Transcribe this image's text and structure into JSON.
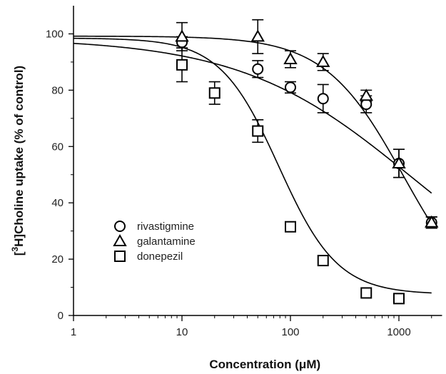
{
  "chart_data": {
    "type": "scatter",
    "x_scale": "log",
    "xlabel": "Concentration (μM)",
    "ylabel_prefix": "[",
    "ylabel_sup": "3",
    "ylabel_suffix": "H]Choline uptake (% of control)",
    "xlim": [
      1,
      2500
    ],
    "ylim": [
      0,
      110
    ],
    "x_ticks": [
      1,
      10,
      100,
      1000
    ],
    "x_tick_labels": [
      "1",
      "10",
      "100",
      "1000"
    ],
    "y_ticks": [
      0,
      20,
      40,
      60,
      80,
      100
    ],
    "y_tick_labels": [
      "0",
      "20",
      "40",
      "60",
      "80",
      "100"
    ],
    "grid": false,
    "legend_position": "lower-left",
    "series": [
      {
        "name": "rivastigmine",
        "marker": "circle",
        "x": [
          10,
          50,
          100,
          200,
          500,
          1000,
          2000
        ],
        "y": [
          97,
          87.5,
          81,
          77,
          75,
          54,
          33
        ],
        "err": [
          2,
          3,
          2,
          5,
          3,
          5,
          2
        ],
        "fit": {
          "top": 98.5,
          "bottom": 0,
          "ic50": 1300,
          "hill": 0.55
        }
      },
      {
        "name": "galantamine",
        "marker": "triangle",
        "x": [
          10,
          50,
          100,
          200,
          500,
          1000,
          2000
        ],
        "y": [
          99,
          99,
          91,
          90,
          78,
          54,
          33
        ],
        "err": [
          5,
          6,
          3,
          3,
          2,
          5,
          2
        ],
        "fit": {
          "top": 99.2,
          "bottom": 0,
          "ic50": 1100,
          "hill": 1.2
        }
      },
      {
        "name": "donepezil",
        "marker": "square",
        "x": [
          10,
          20,
          50,
          100,
          200,
          500,
          1000
        ],
        "y": [
          89,
          79,
          65.5,
          31.5,
          19.5,
          8,
          6
        ],
        "err": [
          6,
          4,
          4,
          0,
          0,
          0,
          0
        ],
        "fit": {
          "top": 98.5,
          "bottom": 7.5,
          "ic50": 78,
          "hill": 1.6
        }
      }
    ]
  }
}
